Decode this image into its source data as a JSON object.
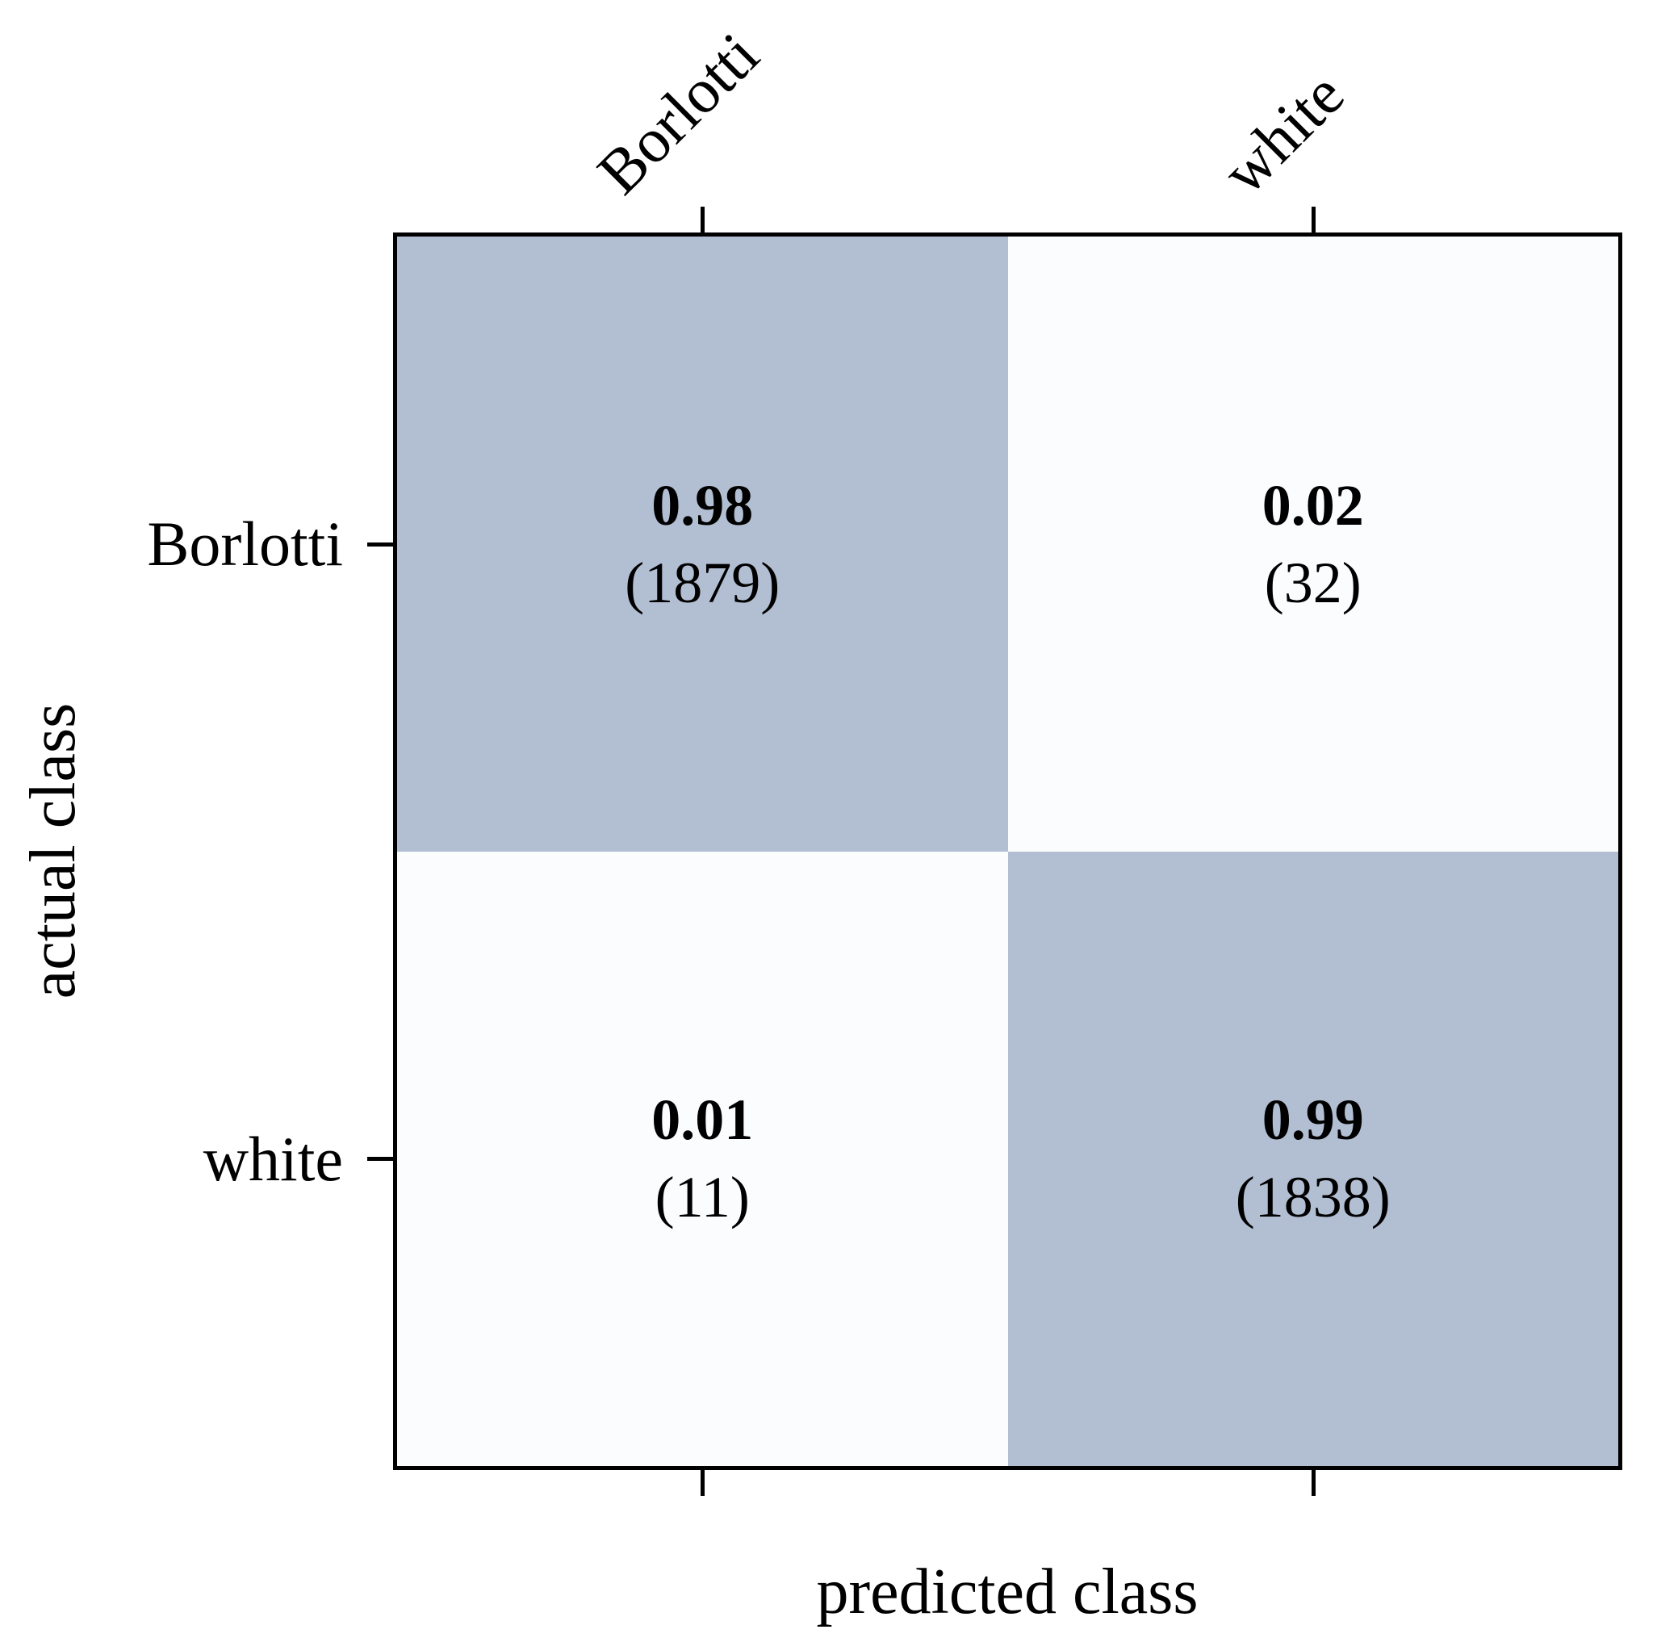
{
  "chart_data": {
    "type": "heatmap",
    "subtype": "confusion-matrix",
    "title": "",
    "xlabel": "predicted class",
    "ylabel": "actual class",
    "x_tick_labels": [
      "Borlotti",
      "white"
    ],
    "y_tick_labels": [
      "Borlotti",
      "white"
    ],
    "grid": "off",
    "cells": [
      {
        "row": "Borlotti",
        "col": "Borlotti",
        "value": 0.98,
        "count": 1879,
        "value_display": "0.98",
        "count_display": "(1879)",
        "diagonal": true
      },
      {
        "row": "Borlotti",
        "col": "white",
        "value": 0.02,
        "count": 32,
        "value_display": "0.02",
        "count_display": "(32)",
        "diagonal": false
      },
      {
        "row": "white",
        "col": "Borlotti",
        "value": 0.01,
        "count": 11,
        "value_display": "0.01",
        "count_display": "(11)",
        "diagonal": false
      },
      {
        "row": "white",
        "col": "white",
        "value": 0.99,
        "count": 1838,
        "value_display": "0.99",
        "count_display": "(1838)",
        "diagonal": true
      }
    ],
    "colors": {
      "diagonal_cell": "#b2bfd3",
      "off_diagonal_cell": "#fbfcfe",
      "border": "#000000",
      "text": "#000000"
    }
  }
}
